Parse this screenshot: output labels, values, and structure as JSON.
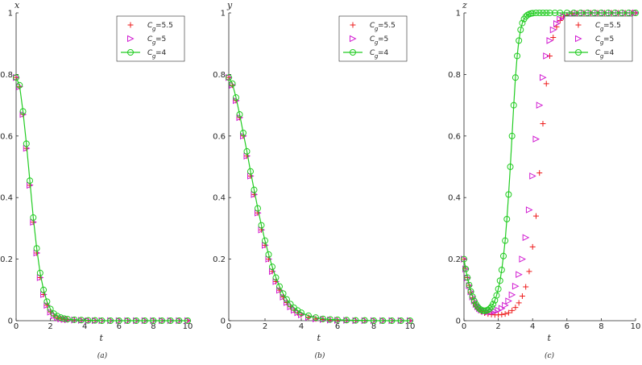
{
  "chart_data": [
    {
      "type": "line",
      "ylabel": "x",
      "xlabel": "t",
      "caption": "(a)",
      "xlim": [
        0,
        10
      ],
      "ylim": [
        0,
        1
      ],
      "xticks": [
        "0",
        "2",
        "4",
        "6",
        "8",
        "10"
      ],
      "yticks": [
        "0",
        "0.2",
        "0.4",
        "0.6",
        "0.8",
        "1"
      ],
      "legend_position": "top-right",
      "grid": false,
      "series": [
        {
          "name_sub": "g",
          "name_value": "=5.5",
          "marker": "plus",
          "color": "#ee1c1c",
          "x": [
            0,
            0.2,
            0.4,
            0.6,
            0.8,
            1,
            1.2,
            1.4,
            1.6,
            1.8,
            2,
            2.2,
            2.4,
            2.6,
            2.8,
            3,
            3.4,
            3.8,
            4.2,
            4.6,
            5,
            5.5,
            6,
            6.5,
            7,
            7.5,
            8,
            8.5,
            9,
            9.5,
            10
          ],
          "y": [
            0.79,
            0.76,
            0.67,
            0.56,
            0.44,
            0.32,
            0.22,
            0.14,
            0.085,
            0.05,
            0.028,
            0.016,
            0.01,
            0.006,
            0.004,
            0.003,
            0.002,
            0.001,
            0,
            0,
            0,
            0,
            0,
            0,
            0,
            0,
            0,
            0,
            0,
            0,
            0
          ]
        },
        {
          "name_sub": "g",
          "name_value": "=5",
          "marker": "triangle-right",
          "color": "#d21fd2",
          "x": [
            0,
            0.2,
            0.4,
            0.6,
            0.8,
            1,
            1.2,
            1.4,
            1.6,
            1.8,
            2,
            2.2,
            2.4,
            2.6,
            2.8,
            3,
            3.4,
            3.8,
            4.2,
            4.6,
            5,
            5.5,
            6,
            6.5,
            7,
            7.5,
            8,
            8.5,
            9,
            9.5,
            10
          ],
          "y": [
            0.79,
            0.76,
            0.67,
            0.56,
            0.44,
            0.32,
            0.22,
            0.14,
            0.085,
            0.05,
            0.028,
            0.016,
            0.01,
            0.006,
            0.004,
            0.003,
            0.002,
            0.001,
            0,
            0,
            0,
            0,
            0,
            0,
            0,
            0,
            0,
            0,
            0,
            0,
            0
          ]
        },
        {
          "name_sub": "g",
          "name_value": "=4",
          "marker": "circle",
          "color": "#22cc22",
          "line": true,
          "x": [
            0,
            0.2,
            0.4,
            0.6,
            0.8,
            1,
            1.2,
            1.4,
            1.6,
            1.8,
            2,
            2.2,
            2.4,
            2.6,
            2.8,
            3,
            3.4,
            3.8,
            4.2,
            4.6,
            5,
            5.5,
            6,
            6.5,
            7,
            7.5,
            8,
            8.5,
            9,
            9.5,
            10
          ],
          "y": [
            0.79,
            0.765,
            0.68,
            0.575,
            0.455,
            0.335,
            0.235,
            0.155,
            0.1,
            0.062,
            0.038,
            0.023,
            0.015,
            0.01,
            0.007,
            0.005,
            0.003,
            0.002,
            0.001,
            0.001,
            0,
            0,
            0,
            0,
            0,
            0,
            0,
            0,
            0,
            0,
            0
          ]
        }
      ]
    },
    {
      "type": "line",
      "ylabel": "y",
      "xlabel": "t",
      "caption": "(b)",
      "xlim": [
        0,
        10
      ],
      "ylim": [
        0,
        1
      ],
      "xticks": [
        "0",
        "2",
        "4",
        "6",
        "8",
        "10"
      ],
      "yticks": [
        "0",
        "0.2",
        "0.4",
        "0.6",
        "0.8",
        "1"
      ],
      "legend_position": "top-right",
      "grid": false,
      "series": [
        {
          "name_sub": "g",
          "name_value": "=5.5",
          "marker": "plus",
          "color": "#ee1c1c",
          "x": [
            0,
            0.2,
            0.4,
            0.6,
            0.8,
            1,
            1.2,
            1.4,
            1.6,
            1.8,
            2,
            2.2,
            2.4,
            2.6,
            2.8,
            3,
            3.2,
            3.4,
            3.6,
            3.8,
            4,
            4.4,
            4.8,
            5.2,
            5.6,
            6,
            6.5,
            7,
            7.5,
            8,
            8.5,
            9,
            9.5,
            10
          ],
          "y": [
            0.79,
            0.765,
            0.715,
            0.66,
            0.6,
            0.535,
            0.47,
            0.41,
            0.35,
            0.295,
            0.245,
            0.2,
            0.16,
            0.127,
            0.099,
            0.077,
            0.059,
            0.045,
            0.034,
            0.026,
            0.019,
            0.011,
            0.006,
            0.004,
            0.002,
            0.001,
            0.001,
            0,
            0,
            0,
            0,
            0,
            0,
            0
          ]
        },
        {
          "name_sub": "g",
          "name_value": "=5",
          "marker": "triangle-right",
          "color": "#d21fd2",
          "x": [
            0,
            0.2,
            0.4,
            0.6,
            0.8,
            1,
            1.2,
            1.4,
            1.6,
            1.8,
            2,
            2.2,
            2.4,
            2.6,
            2.8,
            3,
            3.2,
            3.4,
            3.6,
            3.8,
            4,
            4.4,
            4.8,
            5.2,
            5.6,
            6,
            6.5,
            7,
            7.5,
            8,
            8.5,
            9,
            9.5,
            10
          ],
          "y": [
            0.79,
            0.765,
            0.715,
            0.66,
            0.6,
            0.535,
            0.47,
            0.41,
            0.35,
            0.295,
            0.245,
            0.2,
            0.16,
            0.127,
            0.099,
            0.077,
            0.059,
            0.045,
            0.034,
            0.026,
            0.019,
            0.011,
            0.006,
            0.004,
            0.002,
            0.001,
            0.001,
            0,
            0,
            0,
            0,
            0,
            0,
            0
          ]
        },
        {
          "name_sub": "g",
          "name_value": "=4",
          "marker": "circle",
          "color": "#22cc22",
          "line": true,
          "x": [
            0,
            0.2,
            0.4,
            0.6,
            0.8,
            1,
            1.2,
            1.4,
            1.6,
            1.8,
            2,
            2.2,
            2.4,
            2.6,
            2.8,
            3,
            3.2,
            3.4,
            3.6,
            3.8,
            4,
            4.4,
            4.8,
            5.2,
            5.6,
            6,
            6.5,
            7,
            7.5,
            8,
            8.5,
            9,
            9.5,
            10
          ],
          "y": [
            0.79,
            0.77,
            0.725,
            0.67,
            0.61,
            0.55,
            0.485,
            0.425,
            0.365,
            0.31,
            0.26,
            0.215,
            0.175,
            0.14,
            0.111,
            0.088,
            0.069,
            0.054,
            0.042,
            0.033,
            0.026,
            0.016,
            0.01,
            0.006,
            0.004,
            0.003,
            0.002,
            0.001,
            0.001,
            0,
            0,
            0,
            0,
            0
          ]
        }
      ]
    },
    {
      "type": "line",
      "ylabel": "z",
      "xlabel": "t",
      "caption": "(c)",
      "xlim": [
        0,
        10
      ],
      "ylim": [
        0,
        1
      ],
      "xticks": [
        "0",
        "2",
        "4",
        "6",
        "8",
        "10"
      ],
      "yticks": [
        "0",
        "0.2",
        "0.4",
        "0.6",
        "0.8",
        "1"
      ],
      "legend_position": "top-right",
      "grid": false,
      "series": [
        {
          "name_sub": "g",
          "name_value": "=5.5",
          "marker": "plus",
          "color": "#ee1c1c",
          "x": [
            0,
            0.1,
            0.2,
            0.3,
            0.4,
            0.5,
            0.6,
            0.7,
            0.8,
            0.9,
            1,
            1.2,
            1.4,
            1.6,
            1.8,
            2,
            2.2,
            2.4,
            2.6,
            2.8,
            3,
            3.2,
            3.4,
            3.6,
            3.8,
            4,
            4.2,
            4.4,
            4.6,
            4.8,
            5,
            5.2,
            5.4,
            5.6,
            5.8,
            6,
            6.3,
            6.6,
            7,
            7.4,
            7.8,
            8.2,
            8.6,
            9,
            9.4,
            9.8,
            10
          ],
          "y": [
            0.2,
            0.17,
            0.14,
            0.115,
            0.093,
            0.075,
            0.06,
            0.049,
            0.04,
            0.034,
            0.03,
            0.025,
            0.022,
            0.02,
            0.019,
            0.019,
            0.02,
            0.022,
            0.026,
            0.033,
            0.043,
            0.058,
            0.08,
            0.11,
            0.16,
            0.24,
            0.34,
            0.48,
            0.64,
            0.77,
            0.86,
            0.92,
            0.955,
            0.975,
            0.987,
            0.993,
            0.997,
            0.999,
            1,
            1,
            1,
            1,
            1,
            1,
            1,
            1,
            1
          ]
        },
        {
          "name_sub": "g",
          "name_value": "=5",
          "marker": "triangle-right",
          "color": "#d21fd2",
          "x": [
            0,
            0.1,
            0.2,
            0.3,
            0.4,
            0.5,
            0.6,
            0.7,
            0.8,
            0.9,
            1,
            1.2,
            1.4,
            1.6,
            1.8,
            2,
            2.2,
            2.4,
            2.6,
            2.8,
            3,
            3.2,
            3.4,
            3.6,
            3.8,
            4,
            4.2,
            4.4,
            4.6,
            4.8,
            5,
            5.2,
            5.4,
            5.6,
            5.8,
            6,
            6.3,
            6.6,
            7,
            7.4,
            7.8,
            8.2,
            8.6,
            9,
            9.4,
            9.8,
            10
          ],
          "y": [
            0.2,
            0.168,
            0.139,
            0.114,
            0.094,
            0.077,
            0.064,
            0.053,
            0.045,
            0.039,
            0.035,
            0.03,
            0.028,
            0.028,
            0.03,
            0.034,
            0.04,
            0.05,
            0.064,
            0.084,
            0.112,
            0.15,
            0.2,
            0.27,
            0.36,
            0.47,
            0.59,
            0.7,
            0.79,
            0.86,
            0.91,
            0.945,
            0.965,
            0.98,
            0.988,
            0.993,
            0.997,
            0.999,
            1,
            1,
            1,
            1,
            1,
            1,
            1,
            1,
            1
          ]
        },
        {
          "name_sub": "g",
          "name_value": "=4",
          "marker": "circle",
          "color": "#22cc22",
          "line": true,
          "x": [
            0,
            0.1,
            0.2,
            0.3,
            0.4,
            0.5,
            0.6,
            0.7,
            0.8,
            0.9,
            1,
            1.1,
            1.2,
            1.3,
            1.4,
            1.5,
            1.6,
            1.7,
            1.8,
            1.9,
            2,
            2.1,
            2.2,
            2.3,
            2.4,
            2.5,
            2.6,
            2.7,
            2.8,
            2.9,
            3,
            3.1,
            3.2,
            3.3,
            3.4,
            3.5,
            3.6,
            3.7,
            3.8,
            3.9,
            4,
            4.2,
            4.4,
            4.6,
            4.8,
            5,
            5.3,
            5.6,
            6,
            6.4,
            6.8,
            7.2,
            7.6,
            8,
            8.4,
            8.8,
            9.2,
            9.6,
            10
          ],
          "y": [
            0.2,
            0.168,
            0.14,
            0.116,
            0.095,
            0.078,
            0.064,
            0.053,
            0.045,
            0.039,
            0.035,
            0.033,
            0.032,
            0.033,
            0.035,
            0.039,
            0.045,
            0.054,
            0.066,
            0.082,
            0.103,
            0.13,
            0.165,
            0.21,
            0.26,
            0.33,
            0.41,
            0.5,
            0.6,
            0.7,
            0.79,
            0.86,
            0.91,
            0.945,
            0.967,
            0.98,
            0.988,
            0.993,
            0.996,
            0.998,
            0.999,
            1,
            1,
            1,
            1,
            1,
            1,
            1,
            1,
            1,
            1,
            1,
            1,
            1,
            1,
            1,
            1,
            1,
            1
          ]
        }
      ]
    }
  ],
  "legend_symbol": "C"
}
